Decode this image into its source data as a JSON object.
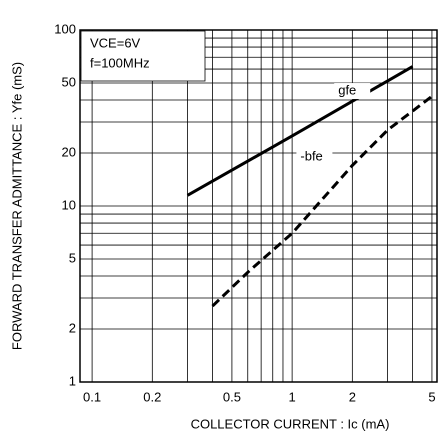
{
  "chart_data": {
    "type": "line",
    "xlabel": "COLLECTOR CURRENT : Ic (mA)",
    "ylabel": "FORWARD TRANSFER ADMITTANCE : Yfe (mS)",
    "annotations": [
      "VCE=6V",
      "f=100MHz"
    ],
    "xscale": "log",
    "yscale": "log",
    "xlim": [
      0.087,
      5.3
    ],
    "ylim": [
      1,
      100
    ],
    "xticks": [
      0.1,
      0.2,
      0.5,
      1,
      2,
      5
    ],
    "yticks": [
      1,
      2,
      5,
      10,
      20,
      50,
      100
    ],
    "xgrid_minor": [
      0.3,
      0.4,
      0.6,
      0.7,
      0.8,
      0.9,
      3,
      4
    ],
    "ygrid_minor": [
      3,
      4,
      6,
      7,
      8,
      9,
      30,
      40,
      60,
      70,
      80,
      90
    ],
    "grid": true,
    "series": [
      {
        "name": "gfe",
        "color": "#000000",
        "dash": false,
        "x": [
          0.3,
          1,
          4
        ],
        "values": [
          11.5,
          25,
          62
        ]
      },
      {
        "name": "-bfe",
        "color": "#000000",
        "dash": true,
        "x": [
          0.4,
          0.6,
          1,
          2,
          3,
          5
        ],
        "values": [
          2.7,
          4.2,
          7,
          17,
          27,
          42
        ]
      }
    ]
  }
}
